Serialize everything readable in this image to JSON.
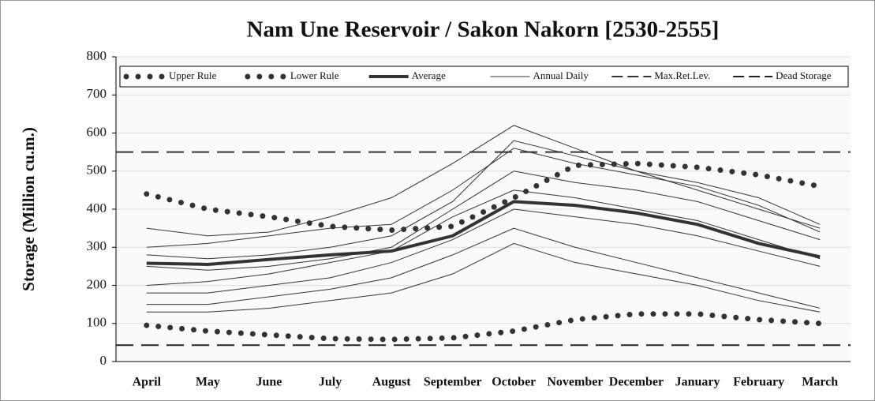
{
  "chart_data": {
    "type": "line",
    "title": "Nam Une Reservoir / Sakon Nakorn [2530-2555]",
    "y_label": "Storage (Million cu.m.)",
    "categories": [
      "April",
      "May",
      "June",
      "July",
      "August",
      "September",
      "October",
      "November",
      "December",
      "January",
      "February",
      "March"
    ],
    "ylim": [
      0,
      800
    ],
    "yticks": [
      0,
      100,
      200,
      300,
      400,
      500,
      600,
      700,
      800
    ],
    "grid": true,
    "legend": "top",
    "series": [
      {
        "name": "Upper Rule",
        "color": "#333333",
        "style": "dots",
        "values": [
          440,
          400,
          380,
          355,
          345,
          355,
          430,
          515,
          520,
          510,
          490,
          460
        ]
      },
      {
        "name": "Lower Rule",
        "color": "#333333",
        "style": "dots",
        "values": [
          95,
          80,
          70,
          60,
          58,
          62,
          80,
          110,
          125,
          125,
          110,
          100
        ]
      },
      {
        "name": "Average",
        "color": "#333333",
        "style": "thick",
        "values": [
          258,
          255,
          268,
          280,
          290,
          330,
          420,
          410,
          390,
          360,
          310,
          275
        ]
      },
      {
        "name": "Annual Daily",
        "color": "#333333",
        "style": "thin",
        "values": [
          [
            350,
            330,
            340,
            380,
            430,
            520,
            620,
            560,
            500,
            450,
            400,
            350
          ],
          [
            300,
            310,
            330,
            350,
            360,
            450,
            560,
            520,
            490,
            460,
            410,
            340
          ],
          [
            250,
            240,
            250,
            270,
            300,
            400,
            500,
            470,
            450,
            420,
            370,
            320
          ],
          [
            200,
            210,
            230,
            260,
            290,
            380,
            450,
            430,
            400,
            370,
            320,
            270
          ],
          [
            180,
            180,
            200,
            220,
            260,
            320,
            400,
            380,
            360,
            330,
            290,
            250
          ],
          [
            150,
            150,
            170,
            190,
            220,
            280,
            350,
            300,
            260,
            220,
            180,
            140
          ],
          [
            130,
            130,
            140,
            160,
            180,
            230,
            310,
            260,
            230,
            200,
            160,
            130
          ],
          [
            280,
            270,
            280,
            300,
            330,
            420,
            580,
            540,
            500,
            470,
            430,
            360
          ]
        ]
      },
      {
        "name": "Max.Ret.Lev.",
        "color": "#333333",
        "style": "dashed",
        "value": 550
      },
      {
        "name": "Dead Storage",
        "color": "#222222",
        "style": "dashed",
        "value": 43
      }
    ]
  }
}
